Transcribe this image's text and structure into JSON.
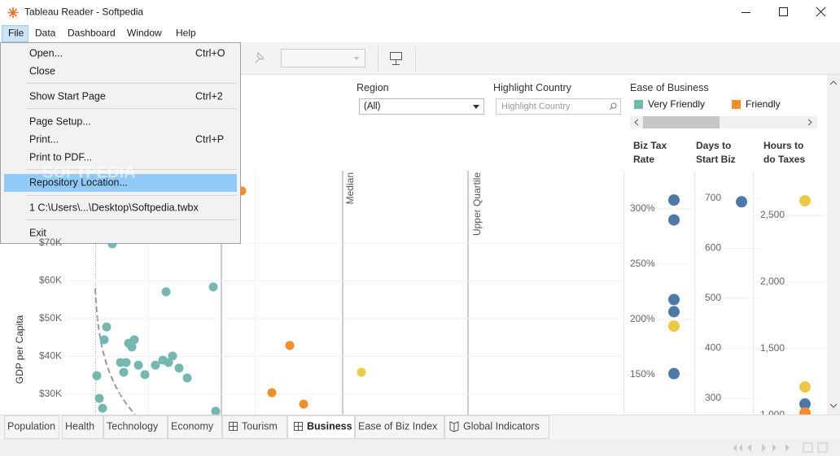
{
  "window": {
    "title": "Tableau Reader - Softpedia"
  },
  "menu_bar": [
    "File",
    "Data",
    "Dashboard",
    "Window",
    "Help"
  ],
  "file_menu": [
    {
      "label": "Open...",
      "shortcut": "Ctrl+O"
    },
    {
      "label": "Close"
    },
    {
      "label": "Show Start Page",
      "shortcut": "Ctrl+2"
    },
    {
      "label": "Page Setup..."
    },
    {
      "label": "Print...",
      "shortcut": "Ctrl+P"
    },
    {
      "label": "Print to PDF..."
    },
    {
      "label": "Repository Location..."
    },
    {
      "label": "1 C:\\Users\\...\\Desktop\\Softpedia.twbx"
    },
    {
      "label": "Exit"
    }
  ],
  "watermark": "SOFTPEDIA",
  "filters": {
    "region": {
      "label": "Region",
      "value": "(All)"
    },
    "highlight": {
      "label": "Highlight Country",
      "placeholder": "Highlight Country"
    },
    "legend": {
      "title": "Ease of Business",
      "items": [
        {
          "name": "Very Friendly",
          "color": "#76b7b2"
        },
        {
          "name": "Friendly",
          "color": "#f28e2b"
        }
      ]
    }
  },
  "main_chart": {
    "y_label": "GDP per Capita",
    "yticks": [
      {
        "value": 70000,
        "label": "$70K"
      },
      {
        "value": 60000,
        "label": "$60K"
      },
      {
        "value": 50000,
        "label": "$50K"
      },
      {
        "value": 40000,
        "label": "$40K"
      },
      {
        "value": 30000,
        "label": "$30K"
      }
    ],
    "reference_lines": [
      "Median",
      "Upper Quartile"
    ],
    "points": [
      {
        "value": 69800,
        "color": "#76b7b2"
      },
      {
        "value": 57100,
        "color": "#76b7b2"
      },
      {
        "value": 58400,
        "color": "#76b7b2"
      },
      {
        "value": 47800,
        "color": "#76b7b2"
      },
      {
        "value": 44400,
        "color": "#76b7b2"
      },
      {
        "value": 43500,
        "color": "#76b7b2"
      },
      {
        "value": 44400,
        "color": "#76b7b2"
      },
      {
        "value": 42500,
        "color": "#76b7b2"
      },
      {
        "value": 38400,
        "color": "#76b7b2"
      },
      {
        "value": 38400,
        "color": "#76b7b2"
      },
      {
        "value": 37700,
        "color": "#76b7b2"
      },
      {
        "value": 37700,
        "color": "#76b7b2"
      },
      {
        "value": 39000,
        "color": "#76b7b2"
      },
      {
        "value": 38400,
        "color": "#76b7b2"
      },
      {
        "value": 40100,
        "color": "#76b7b2"
      },
      {
        "value": 36900,
        "color": "#76b7b2"
      },
      {
        "value": 35800,
        "color": "#76b7b2"
      },
      {
        "value": 34900,
        "color": "#76b7b2"
      },
      {
        "value": 35200,
        "color": "#76b7b2"
      },
      {
        "value": 34300,
        "color": "#76b7b2"
      },
      {
        "value": 28900,
        "color": "#76b7b2"
      },
      {
        "value": 26300,
        "color": "#76b7b2"
      },
      {
        "value": 25500,
        "color": "#76b7b2"
      },
      {
        "value": 83800,
        "color": "#f28e2b"
      },
      {
        "value": 42900,
        "color": "#f28e2b"
      },
      {
        "value": 30400,
        "color": "#f28e2b"
      },
      {
        "value": 27400,
        "color": "#f28e2b"
      },
      {
        "value": 35800,
        "color": "#edc948"
      }
    ]
  },
  "side_charts": [
    {
      "title": [
        "Biz Tax",
        "Rate"
      ],
      "yticks": [
        {
          "value": 300,
          "label": "300%"
        },
        {
          "value": 250,
          "label": "250%"
        },
        {
          "value": 200,
          "label": "200%"
        },
        {
          "value": 150,
          "label": "150%"
        }
      ],
      "points": [
        {
          "value": 308,
          "color": "#4e79a7"
        },
        {
          "value": 290,
          "color": "#4e79a7"
        },
        {
          "value": 218,
          "color": "#4e79a7"
        },
        {
          "value": 207,
          "color": "#4e79a7"
        },
        {
          "value": 194,
          "color": "#edc948"
        },
        {
          "value": 151,
          "color": "#4e79a7"
        }
      ]
    },
    {
      "title": [
        "Days to",
        "Start Biz"
      ],
      "yticks": [
        700,
        600,
        500,
        400,
        300
      ],
      "points": [
        {
          "value": 693,
          "color": "#4e79a7"
        }
      ]
    },
    {
      "title": [
        "Hours to",
        "do Taxes"
      ],
      "yticks": [
        {
          "value": 2500,
          "label": "2,500"
        },
        {
          "value": 2000,
          "label": "2,000"
        },
        {
          "value": 1500,
          "label": "1,500"
        },
        {
          "value": 1000,
          "label": "1,000"
        }
      ],
      "points": [
        {
          "value": 2610,
          "color": "#edc948"
        },
        {
          "value": 1213,
          "color": "#edc948"
        },
        {
          "value": 1085,
          "color": "#4e79a7"
        },
        {
          "value": 1018,
          "color": "#f28e2b"
        }
      ]
    }
  ],
  "tabs": [
    "Population",
    "Health",
    "Technology",
    "Economy",
    "Tourism",
    "Business",
    "Ease of Biz Index",
    "Global Indicators"
  ],
  "active_tab": 5
}
